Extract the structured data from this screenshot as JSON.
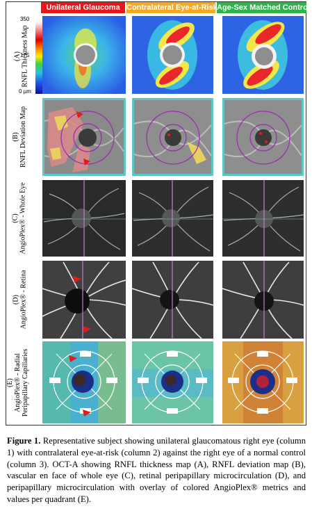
{
  "columns": [
    {
      "label": "Unilateral Glaucoma",
      "color": "#e8161b"
    },
    {
      "label": "Contralateral Eye-at-Risk",
      "color": "#f6a824"
    },
    {
      "label": "Age-Sex Matched Control",
      "color": "#2fb44a"
    }
  ],
  "rows": [
    {
      "label": "(A)\nRNFL Thickness Map"
    },
    {
      "label": "(B)\nRNFL Deviation Map"
    },
    {
      "label": "(C)\nAngioPlex® - Whole Eye"
    },
    {
      "label": "(D)\nAngioPlex® - Retina"
    },
    {
      "label": "(E)\nAngioPlex® - Radial\nPeripapillary Capillaries"
    }
  ],
  "scale": {
    "max": "350",
    "mid": "175",
    "min": "0 µm"
  },
  "caption": {
    "lead": "Figure 1.",
    "text": " Representative subject showing unilateral glaucomatous right eye (column 1) with contralateral eye-at-risk (column 2) against the right eye of a normal control (column 3). OCT-A showing RNFL thickness map (A), RNFL deviation map (B), vascular en face of whole eye (C), retinal peripapillary microcirculation (D), and peripapillary microcirculation with overlay of colored AngioPlex® metrics and values per quadrant (E)."
  }
}
